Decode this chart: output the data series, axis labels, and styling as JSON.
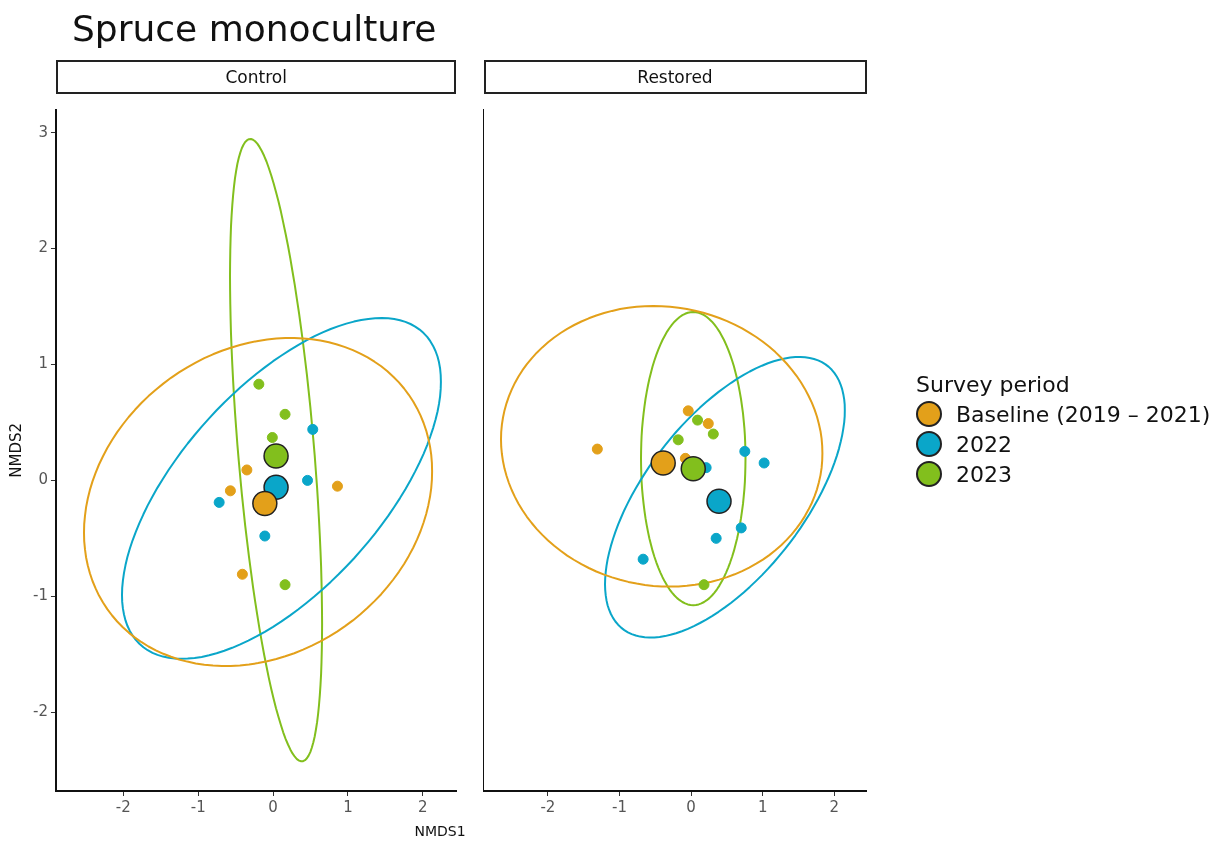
{
  "chart_data": [
    {
      "type": "scatter",
      "title": "Spruce monoculture",
      "subtitle": "Control",
      "xlabel": "NMDS1",
      "ylabel": "NMDS2",
      "xlim": [
        -2.9,
        2.45
      ],
      "xticks": [
        -2,
        -1,
        0,
        1,
        2
      ],
      "ylim": [
        -2.68,
        3.2
      ],
      "yticks": [
        -2,
        -1,
        0,
        1,
        2,
        3
      ],
      "grid": false,
      "legend": false,
      "marker": "circle",
      "series": [
        {
          "type": "scatter",
          "color": "#e3a01a",
          "x": [
            -0.35,
            -0.57,
            -0.41,
            0.86
          ],
          "values": [
            0.09,
            -0.09,
            -0.81,
            -0.05
          ]
        },
        {
          "type": "scatter",
          "color": "#0aa6c9",
          "x": [
            -0.72,
            0.53,
            0.46,
            -0.11
          ],
          "values": [
            -0.19,
            0.44,
            0.0,
            -0.48
          ]
        },
        {
          "type": "scatter",
          "color": "#82bf1d",
          "x": [
            -0.19,
            0.16,
            -0.01,
            0.16
          ],
          "values": [
            0.83,
            0.57,
            0.37,
            -0.9
          ]
        },
        {
          "type": "bubble",
          "color": "#e3a01a",
          "x": [
            -0.11
          ],
          "values": [
            -0.2
          ],
          "sizes": [
            1
          ]
        },
        {
          "type": "bubble",
          "color": "#0aa6c9",
          "x": [
            0.04
          ],
          "values": [
            -0.06
          ],
          "sizes": [
            1
          ]
        },
        {
          "type": "bubble",
          "color": "#82bf1d",
          "x": [
            0.04
          ],
          "values": [
            0.21
          ],
          "sizes": [
            1
          ]
        }
      ]
    },
    {
      "type": "scatter",
      "subtitle": "Restored",
      "legend_title": "Survey period",
      "xlim": [
        -2.9,
        2.45
      ],
      "xticks": [
        -2,
        -1,
        0,
        1,
        2
      ],
      "ylim": [
        -2.68,
        3.2
      ],
      "yticks": [
        -2,
        -1,
        0,
        1,
        2,
        3
      ],
      "tick_labels": "x",
      "grid": false,
      "legend": "right",
      "marker": "circle",
      "series": [
        {
          "type": "scatter",
          "color": "#e3a01a",
          "x": [
            -1.31,
            -0.04,
            0.24,
            -0.08
          ],
          "values": [
            0.27,
            0.6,
            0.49,
            0.19
          ]
        },
        {
          "type": "scatter",
          "color": "#0aa6c9",
          "x": [
            0.75,
            1.02,
            0.21,
            0.7,
            0.35,
            -0.67
          ],
          "values": [
            0.25,
            0.15,
            0.11,
            -0.41,
            -0.5,
            -0.68
          ]
        },
        {
          "type": "scatter",
          "color": "#82bf1d",
          "x": [
            0.09,
            -0.18,
            0.31,
            0.18
          ],
          "values": [
            0.52,
            0.35,
            0.4,
            -0.9
          ]
        },
        {
          "type": "bubble",
          "name": "Baseline (2019 – 2021)",
          "color": "#e3a01a",
          "x": [
            -0.39
          ],
          "values": [
            0.15
          ],
          "sizes": [
            1
          ]
        },
        {
          "type": "bubble",
          "name": "2022",
          "color": "#0aa6c9",
          "x": [
            0.39
          ],
          "values": [
            -0.18
          ],
          "sizes": [
            1
          ]
        },
        {
          "type": "bubble",
          "name": "2023",
          "color": "#82bf1d",
          "x": [
            0.03
          ],
          "values": [
            0.1
          ],
          "sizes": [
            1
          ]
        }
      ]
    }
  ]
}
